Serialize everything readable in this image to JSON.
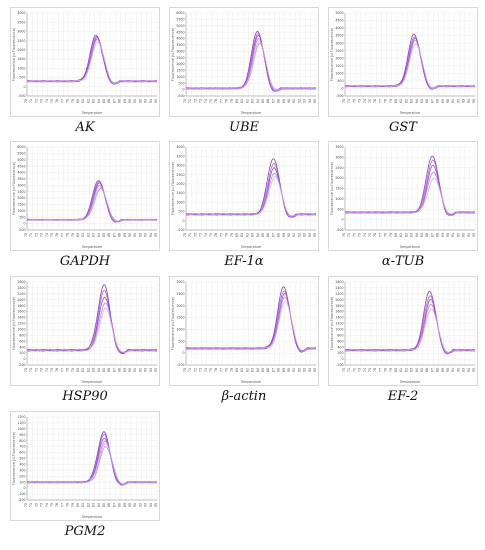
{
  "figure": {
    "ylabel": "Fluorescence (d-Fluorescence)",
    "xlabel": "Temperature"
  },
  "panels": [
    {
      "label": "AK",
      "yticks": [
        "4000",
        "3500",
        "3000",
        "2500",
        "2000",
        "1500",
        "1000",
        "500",
        "0",
        "-500"
      ],
      "xticks": [
        "70",
        "71",
        "72",
        "73",
        "74",
        "75",
        "76",
        "77",
        "78",
        "79",
        "80",
        "81",
        "82",
        "83",
        "84",
        "85",
        "86",
        "87",
        "88",
        "89",
        "90",
        "91",
        "92",
        "93",
        "94",
        "95"
      ]
    },
    {
      "label": "UBE",
      "yticks": [
        "6000",
        "5500",
        "5000",
        "4500",
        "4000",
        "3500",
        "3000",
        "2500",
        "2000",
        "1500",
        "1000",
        "500",
        "0",
        "-500"
      ],
      "xticks": [
        "70",
        "71",
        "72",
        "73",
        "74",
        "75",
        "76",
        "77",
        "78",
        "79",
        "80",
        "81",
        "82",
        "83",
        "84",
        "85",
        "86",
        "87",
        "88",
        "89",
        "90",
        "91",
        "92",
        "93",
        "94",
        "95"
      ]
    },
    {
      "label": "GST",
      "yticks": [
        "5000",
        "4500",
        "4000",
        "3500",
        "3000",
        "2500",
        "2000",
        "1500",
        "1000",
        "500",
        "0",
        "-500"
      ],
      "xticks": [
        "70",
        "71",
        "72",
        "73",
        "74",
        "75",
        "76",
        "77",
        "78",
        "79",
        "80",
        "81",
        "82",
        "83",
        "84",
        "85",
        "86",
        "87",
        "88",
        "89",
        "90",
        "91",
        "92",
        "93",
        "94",
        "95"
      ]
    },
    {
      "label": "GAPDH",
      "yticks": [
        "6000",
        "5500",
        "5000",
        "4500",
        "4000",
        "3500",
        "3000",
        "2500",
        "2000",
        "1500",
        "1000",
        "500",
        "0",
        "-500"
      ],
      "xticks": [
        "70",
        "71",
        "72",
        "73",
        "74",
        "75",
        "76",
        "77",
        "78",
        "79",
        "80",
        "81",
        "82",
        "83",
        "84",
        "85",
        "86",
        "87",
        "88",
        "89",
        "90",
        "91",
        "92",
        "93",
        "94",
        "95"
      ]
    },
    {
      "label": "EF-1α",
      "yticks": [
        "4000",
        "3500",
        "3000",
        "2500",
        "2000",
        "1500",
        "1000",
        "500",
        "0",
        "-500"
      ],
      "xticks": [
        "70",
        "71",
        "72",
        "73",
        "74",
        "75",
        "76",
        "77",
        "78",
        "79",
        "80",
        "81",
        "82",
        "83",
        "84",
        "85",
        "86",
        "87",
        "88",
        "89",
        "90",
        "91",
        "92",
        "93",
        "94",
        "95"
      ]
    },
    {
      "label": "α-TUB",
      "yticks": [
        "3500",
        "3000",
        "2500",
        "2000",
        "1500",
        "1000",
        "500",
        "0",
        "-500"
      ],
      "xticks": [
        "70",
        "71",
        "72",
        "73",
        "74",
        "75",
        "76",
        "77",
        "78",
        "79",
        "80",
        "81",
        "82",
        "83",
        "84",
        "85",
        "86",
        "87",
        "88",
        "89",
        "90",
        "91",
        "92",
        "93",
        "94",
        "95"
      ]
    },
    {
      "label": "HSP90",
      "yticks": [
        "2600",
        "2400",
        "2200",
        "2000",
        "1800",
        "1600",
        "1400",
        "1200",
        "1000",
        "800",
        "600",
        "400",
        "200",
        "0",
        "-200"
      ],
      "xticks": [
        "70",
        "71",
        "72",
        "73",
        "74",
        "75",
        "76",
        "77",
        "78",
        "79",
        "80",
        "81",
        "82",
        "83",
        "84",
        "85",
        "86",
        "87",
        "88",
        "89",
        "90",
        "91",
        "92",
        "93",
        "94",
        "95"
      ]
    },
    {
      "label": "β-actin",
      "yticks": [
        "3000",
        "2500",
        "2000",
        "1500",
        "1000",
        "500",
        "0",
        "-500"
      ],
      "xticks": [
        "70",
        "71",
        "72",
        "73",
        "74",
        "75",
        "76",
        "77",
        "78",
        "79",
        "80",
        "81",
        "82",
        "83",
        "84",
        "85",
        "86",
        "87",
        "88",
        "89",
        "90",
        "91",
        "92",
        "93",
        "94",
        "95"
      ]
    },
    {
      "label": "EF-2",
      "yticks": [
        "2600",
        "2400",
        "2200",
        "2000",
        "1800",
        "1600",
        "1400",
        "1200",
        "1000",
        "800",
        "600",
        "400",
        "200",
        "0",
        "-200"
      ],
      "xticks": [
        "70",
        "71",
        "72",
        "73",
        "74",
        "75",
        "76",
        "77",
        "78",
        "79",
        "80",
        "81",
        "82",
        "83",
        "84",
        "85",
        "86",
        "87",
        "88",
        "89",
        "90",
        "91",
        "92",
        "93",
        "94",
        "95"
      ]
    },
    {
      "label": "PGM2",
      "yticks": [
        "1200",
        "1100",
        "1000",
        "900",
        "800",
        "700",
        "600",
        "500",
        "400",
        "300",
        "200",
        "100",
        "0",
        "-100",
        "-200"
      ],
      "xticks": [
        "70",
        "71",
        "72",
        "73",
        "74",
        "75",
        "76",
        "77",
        "78",
        "79",
        "80",
        "81",
        "82",
        "83",
        "84",
        "85",
        "86",
        "87",
        "88",
        "89",
        "90",
        "91",
        "92",
        "93",
        "94",
        "95"
      ]
    }
  ],
  "chart_data": [
    {
      "type": "line",
      "title": "AK",
      "x_range": [
        70,
        95
      ],
      "peak_temperature": 83.5,
      "ylim": [
        -500,
        4000
      ],
      "baseline": 300,
      "series": [
        {
          "peak": 2800
        },
        {
          "peak": 2750
        },
        {
          "peak": 2650
        },
        {
          "peak": 2550
        },
        {
          "peak": 2450
        }
      ]
    },
    {
      "type": "line",
      "title": "UBE",
      "x_range": [
        70,
        95
      ],
      "peak_temperature": 84,
      "ylim": [
        -500,
        6000
      ],
      "baseline": 100,
      "series": [
        {
          "peak": 4600
        },
        {
          "peak": 4400
        },
        {
          "peak": 4200
        },
        {
          "peak": 4000
        },
        {
          "peak": 3800
        },
        {
          "peak": 3600
        }
      ]
    },
    {
      "type": "line",
      "title": "GST",
      "x_range": [
        70,
        95
      ],
      "peak_temperature": 83.5,
      "ylim": [
        -500,
        5000
      ],
      "baseline": 150,
      "series": [
        {
          "peak": 3600
        },
        {
          "peak": 3450
        },
        {
          "peak": 3300
        },
        {
          "peak": 3150
        },
        {
          "peak": 3000
        }
      ]
    },
    {
      "type": "line",
      "title": "GAPDH",
      "x_range": [
        70,
        95
      ],
      "peak_temperature": 84,
      "ylim": [
        -500,
        6000
      ],
      "baseline": 300,
      "series": [
        {
          "peak": 3400
        },
        {
          "peak": 3300
        },
        {
          "peak": 3150
        },
        {
          "peak": 3000
        },
        {
          "peak": 2850
        },
        {
          "peak": 2700
        }
      ]
    },
    {
      "type": "line",
      "title": "EF-1α",
      "x_range": [
        70,
        95
      ],
      "peak_temperature": 87,
      "ylim": [
        -500,
        4000
      ],
      "baseline": 350,
      "series": [
        {
          "peak": 3400
        },
        {
          "peak": 3100
        },
        {
          "peak": 2850
        },
        {
          "peak": 2600
        },
        {
          "peak": 2400
        }
      ]
    },
    {
      "type": "line",
      "title": "α-TUB",
      "x_range": [
        70,
        95
      ],
      "peak_temperature": 87,
      "ylim": [
        -500,
        3500
      ],
      "baseline": 350,
      "series": [
        {
          "peak": 3100
        },
        {
          "peak": 2850
        },
        {
          "peak": 2600
        },
        {
          "peak": 2300
        },
        {
          "peak": 2000
        }
      ]
    },
    {
      "type": "line",
      "title": "HSP90",
      "x_range": [
        70,
        95
      ],
      "peak_temperature": 85,
      "ylim": [
        -200,
        2600
      ],
      "baseline": 300,
      "series": [
        {
          "peak": 2500
        },
        {
          "peak": 2300
        },
        {
          "peak": 2100
        },
        {
          "peak": 1900
        },
        {
          "peak": 1700
        }
      ]
    },
    {
      "type": "line",
      "title": "β-actin",
      "x_range": [
        70,
        95
      ],
      "peak_temperature": 89,
      "ylim": [
        -500,
        3000
      ],
      "baseline": 200,
      "series": [
        {
          "peak": 2800
        },
        {
          "peak": 2650
        },
        {
          "peak": 2500
        },
        {
          "peak": 2350
        },
        {
          "peak": 2200
        }
      ]
    },
    {
      "type": "line",
      "title": "EF-2",
      "x_range": [
        70,
        95
      ],
      "peak_temperature": 86.5,
      "ylim": [
        -200,
        2600
      ],
      "baseline": 300,
      "series": [
        {
          "peak": 2300
        },
        {
          "peak": 2150
        },
        {
          "peak": 2000
        },
        {
          "peak": 1850
        },
        {
          "peak": 1700
        }
      ]
    },
    {
      "type": "line",
      "title": "PGM2",
      "x_range": [
        70,
        95
      ],
      "peak_temperature": 85,
      "ylim": [
        -200,
        1200
      ],
      "baseline": 100,
      "series": [
        {
          "peak": 950
        },
        {
          "peak": 900
        },
        {
          "peak": 850
        },
        {
          "peak": 800
        },
        {
          "peak": 750
        },
        {
          "peak": 700
        }
      ]
    }
  ],
  "colors": {
    "line_dark": "#7b2fa8",
    "line_mid": "#a957d3",
    "line_light": "#d4a5eb",
    "grid": "#e6e6e6"
  }
}
